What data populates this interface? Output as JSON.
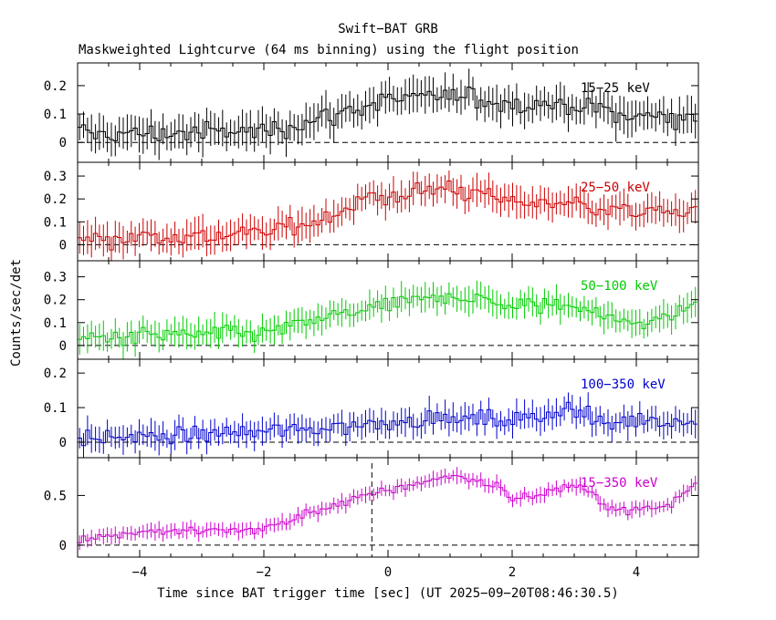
{
  "title": "Swift−BAT GRB",
  "subtitle": "Maskweighted Lightcurve (64 ms binning) using the flight position",
  "xlabel": "Time since BAT trigger time [sec] (UT 2025−09−20T08:46:30.5)",
  "ylabel": "Counts/sec/det",
  "xtick_labels": [
    "−4",
    "−2",
    "0",
    "2",
    "4"
  ],
  "chart_data": {
    "type": "line",
    "title": "Swift−BAT GRB",
    "subtitle": "Maskweighted Lightcurve (64 ms binning) using the flight position",
    "xlabel": "Time since BAT trigger time [sec] (UT 2025−09−20T08:46:30.5)",
    "ylabel": "Counts/sec/det",
    "xlim": [
      -5.0,
      5.0
    ],
    "bin_width_s": 0.064,
    "trigger_marker_x": -0.26,
    "panels": [
      {
        "name": "15−25 keV",
        "color": "#000000",
        "ylim": [
          -0.07,
          0.28
        ],
        "yticks": [
          0,
          0.1,
          0.2
        ],
        "ytick_labels": [
          "0",
          "0.1",
          "0.2"
        ],
        "err": 0.055,
        "profile": [
          [
            -5.0,
            0.03
          ],
          [
            -4.0,
            0.03
          ],
          [
            -2.0,
            0.04
          ],
          [
            -1.0,
            0.09
          ],
          [
            0.0,
            0.15
          ],
          [
            1.0,
            0.16
          ],
          [
            2.0,
            0.14
          ],
          [
            3.0,
            0.13
          ],
          [
            4.0,
            0.09
          ],
          [
            5.0,
            0.09
          ]
        ]
      },
      {
        "name": "25−50 keV",
        "color": "#cc0000",
        "ylim": [
          -0.07,
          0.36
        ],
        "yticks": [
          0,
          0.1,
          0.2,
          0.3
        ],
        "ytick_labels": [
          "0",
          "0.1",
          "0.2",
          "0.3"
        ],
        "err": 0.06,
        "profile": [
          [
            -5.0,
            0.03
          ],
          [
            -3.0,
            0.04
          ],
          [
            -2.0,
            0.05
          ],
          [
            -1.0,
            0.12
          ],
          [
            -0.3,
            0.2
          ],
          [
            0.5,
            0.23
          ],
          [
            1.0,
            0.25
          ],
          [
            1.5,
            0.22
          ],
          [
            2.0,
            0.19
          ],
          [
            3.0,
            0.18
          ],
          [
            4.0,
            0.14
          ],
          [
            5.0,
            0.15
          ]
        ]
      },
      {
        "name": "50−100 keV",
        "color": "#00cc00",
        "ylim": [
          -0.06,
          0.37
        ],
        "yticks": [
          0,
          0.1,
          0.2,
          0.3
        ],
        "ytick_labels": [
          "0",
          "0.1",
          "0.2",
          "0.3"
        ],
        "err": 0.055,
        "profile": [
          [
            -5.0,
            0.03
          ],
          [
            -3.0,
            0.05
          ],
          [
            -2.0,
            0.05
          ],
          [
            -1.0,
            0.12
          ],
          [
            0.0,
            0.17
          ],
          [
            1.0,
            0.22
          ],
          [
            1.5,
            0.2
          ],
          [
            2.0,
            0.17
          ],
          [
            3.0,
            0.18
          ],
          [
            3.7,
            0.1
          ],
          [
            4.5,
            0.12
          ],
          [
            5.0,
            0.2
          ]
        ]
      },
      {
        "name": "100−350 keV",
        "color": "#0000cc",
        "ylim": [
          -0.045,
          0.24
        ],
        "yticks": [
          0,
          0.1,
          0.2
        ],
        "ytick_labels": [
          "0",
          "0.1",
          "0.2"
        ],
        "err": 0.035,
        "profile": [
          [
            -5.0,
            0.01
          ],
          [
            -3.0,
            0.02
          ],
          [
            -1.0,
            0.04
          ],
          [
            0.0,
            0.06
          ],
          [
            1.0,
            0.07
          ],
          [
            2.0,
            0.06
          ],
          [
            2.9,
            0.1
          ],
          [
            3.5,
            0.05
          ],
          [
            4.2,
            0.07
          ],
          [
            5.0,
            0.05
          ]
        ]
      },
      {
        "name": "15−350 keV",
        "color": "#cc00cc",
        "ylim": [
          -0.12,
          0.88
        ],
        "yticks": [
          0,
          0.5
        ],
        "ytick_labels": [
          "0",
          "0.5"
        ],
        "err": 0.07,
        "profile": [
          [
            -5.0,
            0.07
          ],
          [
            -4.0,
            0.13
          ],
          [
            -2.0,
            0.16
          ],
          [
            -1.0,
            0.38
          ],
          [
            0.0,
            0.55
          ],
          [
            1.0,
            0.7
          ],
          [
            1.8,
            0.6
          ],
          [
            2.0,
            0.45
          ],
          [
            3.0,
            0.6
          ],
          [
            3.7,
            0.35
          ],
          [
            4.5,
            0.38
          ],
          [
            5.0,
            0.65
          ]
        ]
      }
    ]
  }
}
